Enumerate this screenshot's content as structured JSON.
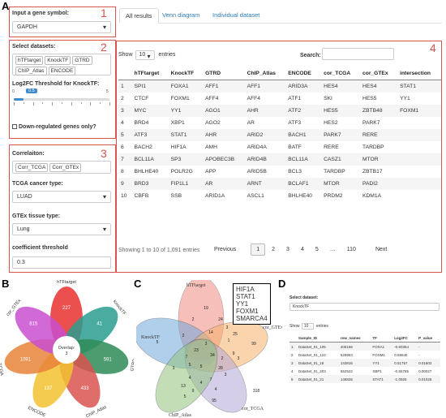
{
  "panels": {
    "a": "A",
    "b": "B",
    "c": "C",
    "d": "D"
  },
  "box_numbers": [
    "1",
    "2",
    "3",
    "4"
  ],
  "sidebar": {
    "gene_label": "Input a gene symbol:",
    "gene_value": "GAPDH",
    "datasets_label": "Select datasets:",
    "datasets": [
      "hTFtarget",
      "KnockTF",
      "GTRD",
      "ChIP_Atlas",
      "ENCODE"
    ],
    "log2fc_label": "Log2FC Threshold for KnockTF:",
    "slider_value": "0.5",
    "slider_min": "0",
    "slider_max": "5",
    "slider_fraction": 0.1,
    "slider_ticks": [
      "0",
      "0.5",
      "1",
      "1.5",
      "2",
      "2.5",
      "3",
      "3.5",
      "4",
      "4.5",
      "5"
    ],
    "downreg_label": "Down-regulated genes only?",
    "corr_label": "Correlaiton:",
    "corr_chips": [
      "Corr_TCGA",
      "Corr_GTEx"
    ],
    "cancer_label": "TCGA cancer type:",
    "cancer_value": "LUAD",
    "tissue_label": "GTEx tissue type:",
    "tissue_value": "Lung",
    "coef_label": "coefficient threshold",
    "coef_value": "0.3"
  },
  "tabs": [
    "All results",
    "Venn diagram",
    "Individual dataset"
  ],
  "table": {
    "show_label": "Show",
    "show_value": "10",
    "entries_label": "entries",
    "search_label": "Search:",
    "columns": [
      "",
      "hTFtarget",
      "KnockTF",
      "GTRD",
      "ChIP_Atlas",
      "ENCODE",
      "cor_TCGA",
      "cor_GTEx",
      "intersection"
    ],
    "rows": [
      [
        "1",
        "SPI1",
        "FOXA1",
        "AFF1",
        "AFF1",
        "ARID3A",
        "HES4",
        "HES4",
        "STAT1"
      ],
      [
        "2",
        "CTCF",
        "FOXM1",
        "AFF4",
        "AFF4",
        "ATF1",
        "SKI",
        "HES5",
        "YY1"
      ],
      [
        "3",
        "MYC",
        "YY1",
        "AGO1",
        "AHR",
        "ATF2",
        "HES5",
        "ZBTB48",
        "FOXM1"
      ],
      [
        "4",
        "BRD4",
        "XBP1",
        "AGO2",
        "AR",
        "ATF3",
        "HES2",
        "PARK7",
        ""
      ],
      [
        "5",
        "ATF3",
        "STAT1",
        "AHR",
        "ARID2",
        "BACH1",
        "PARK7",
        "RERE",
        ""
      ],
      [
        "6",
        "BACH2",
        "HIF1A",
        "AMH",
        "ARID4A",
        "BATF",
        "RERE",
        "TARDBP",
        ""
      ],
      [
        "7",
        "BCL11A",
        "SP3",
        "APOBEC3B",
        "ARID4B",
        "BCL11A",
        "CASZ1",
        "MTOR",
        ""
      ],
      [
        "8",
        "BHLHE40",
        "POLR2G",
        "APP",
        "ARID5B",
        "BCL3",
        "TARDBP",
        "ZBTB17",
        ""
      ],
      [
        "9",
        "BRD3",
        "FIP1L1",
        "AR",
        "ARNT",
        "BCLAF1",
        "MTOR",
        "PADI2",
        ""
      ],
      [
        "10",
        "CBFB",
        "SSB",
        "ARID1A",
        "ASCL1",
        "BHLHE40",
        "PRDM2",
        "KDM1A",
        ""
      ]
    ],
    "info": "Showing 1 to 10 of 1,091 entries",
    "pagination": [
      "Previous",
      "1",
      "2",
      "3",
      "4",
      "5",
      "…",
      "110",
      "Next"
    ]
  },
  "flower": {
    "labels": [
      "hTFtarget",
      "KnockTF",
      "GTRD",
      "ChIP_Atlas",
      "ENCODE",
      "cor_TCGA",
      "cor_GTEx"
    ],
    "petal_values": [
      "227",
      "41",
      "591",
      "433",
      "137",
      "1091",
      "815"
    ],
    "center_label": "Overlap:",
    "center_value": "3",
    "colors": [
      "#e8312f",
      "#2a9d8f",
      "#2e8b57",
      "#d9534f",
      "#f2c230",
      "#e8823a",
      "#c94fd0"
    ]
  },
  "venn": {
    "labels": [
      "hTFtarget",
      "KnockTF",
      "cor_GTEx",
      "cor_TCGA",
      "ChIP_Atlas"
    ],
    "callout": [
      "HIF1A",
      "STAT1",
      "YY1",
      "FOXM1",
      "SMARCA4"
    ],
    "numbers": [
      "19",
      "5",
      "25",
      "99",
      "318",
      "95",
      "5",
      "28",
      "14",
      "2",
      "3",
      "2",
      "24",
      "1",
      "34",
      "9",
      "23",
      "7",
      "2",
      "3",
      "5",
      "5",
      "3",
      "7",
      "4",
      "13",
      "4",
      "4",
      "9",
      "3",
      "3"
    ],
    "colors": [
      "#f28b82",
      "#6fa8dc",
      "#f6b26b",
      "#b4a7d6",
      "#93c47d"
    ]
  },
  "dpanel": {
    "select_label": "Select dataset:",
    "select_value": "KnockTF",
    "show_label": "Show",
    "show_value": "10",
    "entries_label": "entries",
    "columns": [
      "",
      "Sample_ID",
      "row_names",
      "TF",
      "Log2FC",
      "P_value"
    ],
    "rows": [
      [
        "1",
        "DataSet_01_105",
        "405166",
        "FOXA1",
        "-0.60354",
        "-"
      ],
      [
        "2",
        "DataSet_01_122",
        "528953",
        "FOXM1",
        "0.58645",
        "-"
      ],
      [
        "3",
        "DataSet_01_18",
        "143816",
        "YY1",
        "0.51757",
        "0.01602"
      ],
      [
        "4",
        "DataSet_01_203",
        "652522",
        "XBP1",
        "-0.55785",
        "0.00027"
      ],
      [
        "5",
        "DataSet_01_21",
        "146826",
        "STAT1",
        "-1.0925",
        "0.01026"
      ]
    ]
  }
}
